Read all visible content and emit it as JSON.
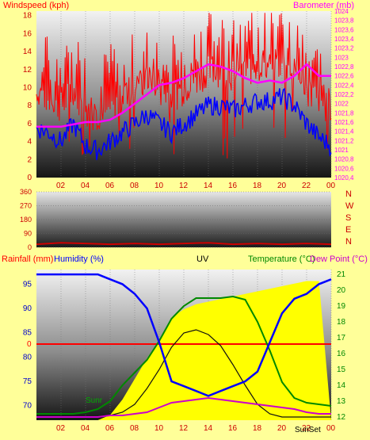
{
  "colors": {
    "background": "#ffff99",
    "windspeed": "#ff0000",
    "barometer": "#ff00ff",
    "humidity": "#0000ff",
    "temperature": "#008800",
    "dewpoint": "#cc00cc",
    "rainfall": "#ff0000",
    "uv": "#ffff00",
    "solar": "#111111",
    "direction": "#cc0000",
    "axis_text": "#cc0000"
  },
  "wind_chart": {
    "title_left": "Windspeed (kph)",
    "title_center": "",
    "title_right": "Barometer (mb)",
    "left_ticks": [
      "0",
      "2",
      "4",
      "6",
      "8",
      "10",
      "12",
      "14",
      "16",
      "18"
    ],
    "right_ticks": [
      "1020,4",
      "1020,6",
      "1020,8",
      "1021",
      "1021,2",
      "1021,4",
      "1021,6",
      "1021,8",
      "1022",
      "1022,2",
      "1022,4",
      "1022,6",
      "1022,8",
      "1023",
      "1023,2",
      "1023,4",
      "1023,6",
      "1023,8",
      "1024"
    ],
    "x_ticks": [
      "02",
      "04",
      "06",
      "08",
      "10",
      "12",
      "14",
      "16",
      "18",
      "20",
      "22",
      "00"
    ]
  },
  "dir_chart": {
    "left_ticks": [
      "0",
      "90",
      "180",
      "270",
      "360"
    ],
    "compass": [
      "N",
      "W",
      "S",
      "E",
      "N"
    ]
  },
  "bottom_chart": {
    "title_rainfall": "Rainfall (mm)",
    "title_humidity": "Humidity (%)",
    "title_uv": "UV",
    "title_temperature": "Temperature (°C)",
    "title_dewpoint": "Dew Point (°C)",
    "rain_tick": "0",
    "humidity_ticks": [
      "70",
      "75",
      "80",
      "85",
      "90",
      "95"
    ],
    "temp_ticks": [
      "12",
      "13",
      "14",
      "15",
      "16",
      "17",
      "18",
      "19",
      "20",
      "21"
    ],
    "x_ticks": [
      "02",
      "04",
      "06",
      "08",
      "10",
      "12",
      "14",
      "16",
      "18",
      "20",
      "22",
      "00"
    ],
    "sunrise_label": "Sunr",
    "sunset_label": "SunSet"
  },
  "chart_data": [
    {
      "type": "line",
      "x": [
        0,
        1,
        2,
        3,
        4,
        5,
        6,
        7,
        8,
        9,
        10,
        11,
        12,
        13,
        14,
        15,
        16,
        17,
        18,
        19,
        20,
        21,
        22,
        23,
        24
      ],
      "series": [
        {
          "name": "Windspeed (kph)",
          "axis": "left",
          "values": [
            5.5,
            5,
            4,
            6,
            3.5,
            3,
            4,
            5,
            6,
            7,
            6,
            5,
            6,
            7,
            8,
            8,
            7.5,
            8,
            8.5,
            8.5,
            9,
            8,
            6,
            4.5,
            3.5
          ]
        },
        {
          "name": "Barometer (mb)",
          "axis": "right",
          "values": [
            1021.5,
            1021.5,
            1021.5,
            1021.55,
            1021.6,
            1021.6,
            1021.65,
            1021.8,
            1022,
            1022.2,
            1022.4,
            1022.45,
            1022.55,
            1022.7,
            1022.85,
            1022.8,
            1022.7,
            1022.55,
            1022.45,
            1022.5,
            1022.45,
            1022.6,
            1022.85,
            1022.6,
            1022.6
          ]
        }
      ],
      "title": "",
      "ylim": [
        0,
        18.5
      ],
      "ylim_right": [
        1020.4,
        1024
      ]
    },
    {
      "type": "line",
      "x": [
        0,
        2,
        4,
        6,
        8,
        10,
        12,
        14,
        16,
        18,
        20,
        22,
        24
      ],
      "series": [
        {
          "name": "Direction",
          "values": [
            20,
            30,
            25,
            20,
            25,
            20,
            25,
            30,
            20,
            25,
            20,
            25,
            20
          ]
        }
      ],
      "ylim": [
        0,
        360
      ]
    },
    {
      "type": "line",
      "x": [
        0,
        1,
        2,
        3,
        4,
        5,
        6,
        7,
        8,
        9,
        10,
        11,
        12,
        13,
        14,
        15,
        16,
        17,
        18,
        19,
        20,
        21,
        22,
        23,
        24
      ],
      "series": [
        {
          "name": "Humidity (%)",
          "axis": "left",
          "values": [
            97,
            97,
            97,
            97,
            97,
            97,
            96,
            95,
            93,
            90,
            83,
            75,
            74,
            73,
            72,
            73,
            74,
            75,
            77,
            83,
            89,
            92,
            93,
            95,
            96
          ]
        },
        {
          "name": "Temperature (°C)",
          "axis": "right",
          "values": [
            12.2,
            12.2,
            12.2,
            12.2,
            12.3,
            12.5,
            13,
            14,
            14.8,
            15.6,
            16.8,
            18.2,
            19,
            19.5,
            19.5,
            19.5,
            19.6,
            19.4,
            18,
            16.2,
            14.2,
            13.2,
            12.9,
            12.8,
            12.7
          ]
        },
        {
          "name": "Dew Point (°C)",
          "axis": "right",
          "values": [
            12,
            12,
            12,
            12,
            12,
            12,
            12.1,
            12.1,
            12.2,
            12.3,
            12.6,
            12.9,
            13,
            13.1,
            13.2,
            13.1,
            13,
            12.9,
            12.8,
            12.7,
            12.6,
            12.5,
            12.3,
            12.2,
            12.2
          ]
        },
        {
          "name": "UV",
          "axis": "area",
          "values": [
            0,
            0,
            0,
            0,
            0,
            0,
            0.2,
            0.8,
            1.6,
            2.4,
            3.1,
            4.0,
            4.3,
            4.5,
            4.6,
            4.7,
            4.8,
            4.9,
            5.0,
            5.1,
            5.2,
            5.3,
            5.4,
            5.4,
            0
          ]
        },
        {
          "name": "Solar",
          "axis": "right",
          "values": [
            12,
            12,
            12,
            12,
            12,
            12,
            12.1,
            12.3,
            12.8,
            13.8,
            15,
            16.4,
            17.3,
            17.5,
            17.2,
            16.5,
            15.3,
            14,
            12.8,
            12.2,
            12,
            12,
            12,
            12,
            12
          ]
        }
      ],
      "title": "",
      "ylim": [
        67,
        98
      ],
      "ylim_right": [
        11.8,
        21.3
      ],
      "rainfall": 0
    }
  ]
}
